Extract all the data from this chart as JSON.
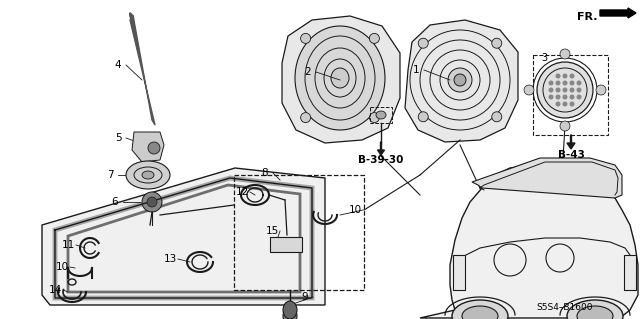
{
  "bg_color": "#ffffff",
  "lc": "#1a1a1a",
  "fig_w": 6.4,
  "fig_h": 3.19,
  "xlim": [
    0,
    640
  ],
  "ylim": [
    0,
    319
  ]
}
